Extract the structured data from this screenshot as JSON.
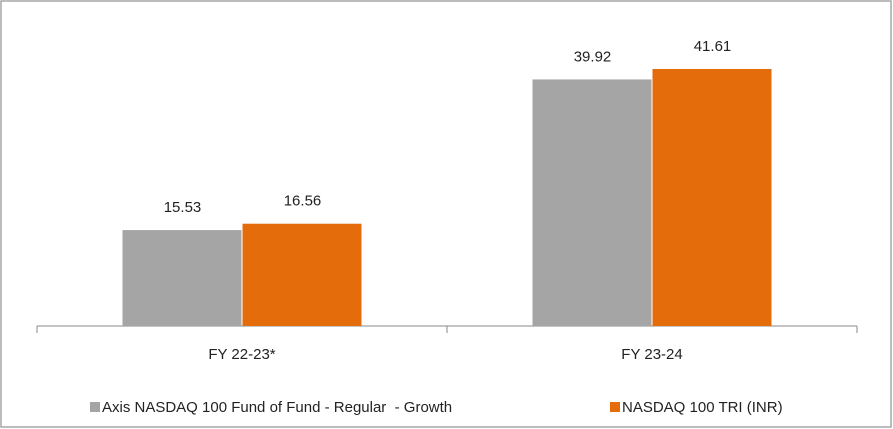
{
  "chart_data": {
    "type": "bar",
    "categories": [
      "FY 22-23*",
      "FY 23-24"
    ],
    "series": [
      {
        "name": "Axis NASDAQ 100 Fund of Fund - Regular  - Growth",
        "color": "#a5a5a5",
        "values": [
          15.53,
          39.92
        ]
      },
      {
        "name": "NASDAQ 100 TRI (INR)",
        "color": "#e46c0a",
        "values": [
          16.56,
          41.61
        ]
      }
    ]
  }
}
